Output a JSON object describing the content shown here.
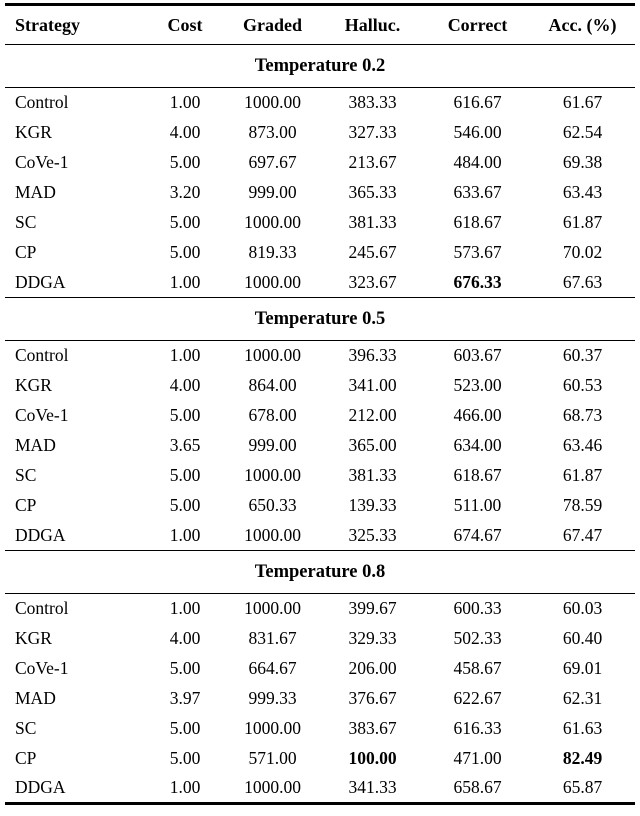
{
  "colors": {
    "text": "#000000",
    "background": "#ffffff",
    "rule": "#000000"
  },
  "table": {
    "columns": [
      "Strategy",
      "Cost",
      "Graded",
      "Halluc.",
      "Correct",
      "Acc. (%)"
    ],
    "sections": [
      {
        "title": "Temperature 0.2",
        "rows": [
          {
            "strategy": "Control",
            "values": [
              "1.00",
              "1000.00",
              "383.33",
              "616.67",
              "61.67"
            ],
            "bold": []
          },
          {
            "strategy": "KGR",
            "values": [
              "4.00",
              "873.00",
              "327.33",
              "546.00",
              "62.54"
            ],
            "bold": []
          },
          {
            "strategy": "CoVe-1",
            "values": [
              "5.00",
              "697.67",
              "213.67",
              "484.00",
              "69.38"
            ],
            "bold": []
          },
          {
            "strategy": "MAD",
            "values": [
              "3.20",
              "999.00",
              "365.33",
              "633.67",
              "63.43"
            ],
            "bold": []
          },
          {
            "strategy": "SC",
            "values": [
              "5.00",
              "1000.00",
              "381.33",
              "618.67",
              "61.87"
            ],
            "bold": []
          },
          {
            "strategy": "CP",
            "values": [
              "5.00",
              "819.33",
              "245.67",
              "573.67",
              "70.02"
            ],
            "bold": []
          },
          {
            "strategy": "DDGA",
            "values": [
              "1.00",
              "1000.00",
              "323.67",
              "676.33",
              "67.63"
            ],
            "bold": [
              3
            ]
          }
        ]
      },
      {
        "title": "Temperature 0.5",
        "rows": [
          {
            "strategy": "Control",
            "values": [
              "1.00",
              "1000.00",
              "396.33",
              "603.67",
              "60.37"
            ],
            "bold": []
          },
          {
            "strategy": "KGR",
            "values": [
              "4.00",
              "864.00",
              "341.00",
              "523.00",
              "60.53"
            ],
            "bold": []
          },
          {
            "strategy": "CoVe-1",
            "values": [
              "5.00",
              "678.00",
              "212.00",
              "466.00",
              "68.73"
            ],
            "bold": []
          },
          {
            "strategy": "MAD",
            "values": [
              "3.65",
              "999.00",
              "365.00",
              "634.00",
              "63.46"
            ],
            "bold": []
          },
          {
            "strategy": "SC",
            "values": [
              "5.00",
              "1000.00",
              "381.33",
              "618.67",
              "61.87"
            ],
            "bold": []
          },
          {
            "strategy": "CP",
            "values": [
              "5.00",
              "650.33",
              "139.33",
              "511.00",
              "78.59"
            ],
            "bold": []
          },
          {
            "strategy": "DDGA",
            "values": [
              "1.00",
              "1000.00",
              "325.33",
              "674.67",
              "67.47"
            ],
            "bold": []
          }
        ]
      },
      {
        "title": "Temperature 0.8",
        "rows": [
          {
            "strategy": "Control",
            "values": [
              "1.00",
              "1000.00",
              "399.67",
              "600.33",
              "60.03"
            ],
            "bold": []
          },
          {
            "strategy": "KGR",
            "values": [
              "4.00",
              "831.67",
              "329.33",
              "502.33",
              "60.40"
            ],
            "bold": []
          },
          {
            "strategy": "CoVe-1",
            "values": [
              "5.00",
              "664.67",
              "206.00",
              "458.67",
              "69.01"
            ],
            "bold": []
          },
          {
            "strategy": "MAD",
            "values": [
              "3.97",
              "999.33",
              "376.67",
              "622.67",
              "62.31"
            ],
            "bold": []
          },
          {
            "strategy": "SC",
            "values": [
              "5.00",
              "1000.00",
              "383.67",
              "616.33",
              "61.63"
            ],
            "bold": []
          },
          {
            "strategy": "CP",
            "values": [
              "5.00",
              "571.00",
              "100.00",
              "471.00",
              "82.49"
            ],
            "bold": [
              2,
              4
            ]
          },
          {
            "strategy": "DDGA",
            "values": [
              "1.00",
              "1000.00",
              "341.33",
              "658.67",
              "65.87"
            ],
            "bold": []
          }
        ]
      }
    ]
  }
}
